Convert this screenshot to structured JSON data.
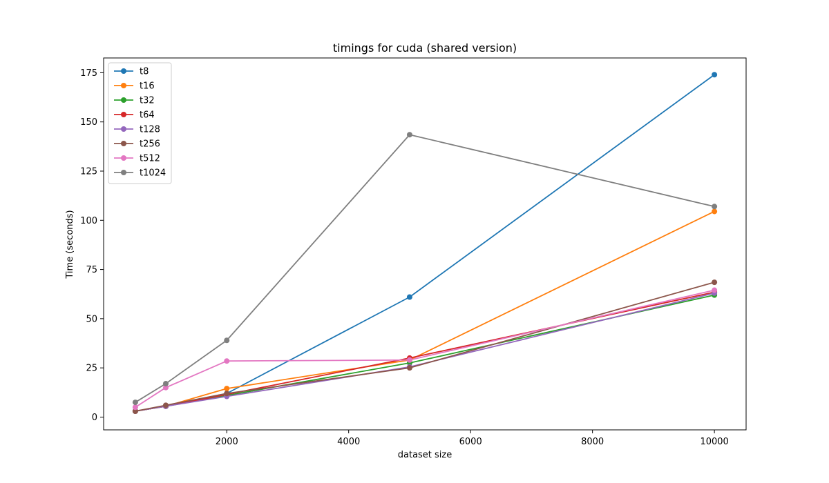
{
  "chart_data": {
    "type": "line",
    "title": "timings for cuda (shared version)",
    "xlabel": "dataset size",
    "ylabel": "Time (seconds)",
    "x": [
      500,
      1000,
      2000,
      5000,
      10000
    ],
    "xlim": [
      -20,
      10520
    ],
    "ylim": [
      -6.5,
      182.5
    ],
    "xticks": [
      2000,
      4000,
      6000,
      8000,
      10000
    ],
    "xtick_labels": [
      "2000",
      "4000",
      "6000",
      "8000",
      "10000"
    ],
    "yticks": [
      0,
      25,
      50,
      75,
      100,
      125,
      150,
      175
    ],
    "ytick_labels": [
      "0",
      "25",
      "50",
      "75",
      "100",
      "125",
      "150",
      "175"
    ],
    "grid": false,
    "legend_position": "top-left",
    "series": [
      {
        "name": "t8",
        "color": "#1f77b4",
        "values": [
          3.0,
          5.5,
          12.0,
          61.0,
          174.0
        ]
      },
      {
        "name": "t16",
        "color": "#ff7f0e",
        "values": [
          3.0,
          5.5,
          14.5,
          29.0,
          104.5
        ]
      },
      {
        "name": "t32",
        "color": "#2ca02c",
        "values": [
          3.0,
          5.5,
          11.0,
          27.5,
          62.0
        ]
      },
      {
        "name": "t64",
        "color": "#d62728",
        "values": [
          3.0,
          5.5,
          11.5,
          30.0,
          63.5
        ]
      },
      {
        "name": "t128",
        "color": "#9467bd",
        "values": [
          3.0,
          5.5,
          10.5,
          25.5,
          63.0
        ]
      },
      {
        "name": "t256",
        "color": "#8c564b",
        "values": [
          3.0,
          6.0,
          12.0,
          25.0,
          68.5
        ]
      },
      {
        "name": "t512",
        "color": "#e377c2",
        "values": [
          5.0,
          15.0,
          28.5,
          29.0,
          64.5
        ]
      },
      {
        "name": "t1024",
        "color": "#7f7f7f",
        "values": [
          7.5,
          17.0,
          39.0,
          143.5,
          107.0
        ]
      }
    ]
  }
}
